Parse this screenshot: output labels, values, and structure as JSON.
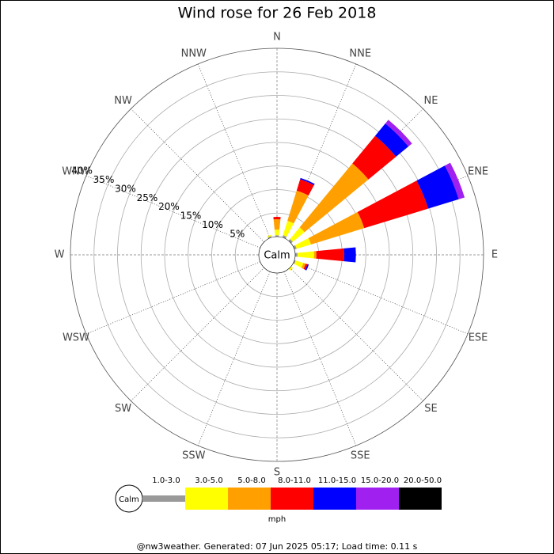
{
  "chart_data": {
    "type": "windrose",
    "title": "Wind rose for 26 Feb 2018",
    "calm_label": "Calm",
    "unit": "mph",
    "footer": "@nw3weather. Generated: 07 Jun 2025 05:17; Load time: 0.11 s",
    "categories": [
      "N",
      "NNE",
      "NE",
      "ENE",
      "E",
      "ESE",
      "SE",
      "SSE",
      "S",
      "SSW",
      "SW",
      "WSW",
      "W",
      "WNW",
      "NW",
      "NNW"
    ],
    "ylim": [
      0,
      40
    ],
    "yticks": [
      {
        "value": 5,
        "label": "5%"
      },
      {
        "value": 10,
        "label": "10%"
      },
      {
        "value": 15,
        "label": "15%"
      },
      {
        "value": 20,
        "label": "20%"
      },
      {
        "value": 25,
        "label": "25%"
      },
      {
        "value": 30,
        "label": "30%"
      },
      {
        "value": 35,
        "label": "35%"
      },
      {
        "value": 40,
        "label": "40%"
      }
    ],
    "series": [
      {
        "name": "1.0-3.0",
        "color": "#999999",
        "values": [
          0.3,
          0.5,
          0.5,
          0.5,
          0.5,
          0.3,
          0,
          0,
          0,
          0,
          0,
          0,
          0,
          0,
          0,
          0.3
        ]
      },
      {
        "name": "3.0-5.0",
        "color": "#ffff00",
        "values": [
          1.2,
          3.2,
          3.2,
          3.2,
          3.5,
          1.7,
          0.5,
          0,
          0,
          0,
          0,
          0,
          0,
          0,
          0,
          0.3
        ]
      },
      {
        "name": "5.0-8.0",
        "color": "#ffa000",
        "values": [
          2.2,
          6.7,
          17.6,
          11.8,
          0.5,
          0.5,
          0,
          0,
          0,
          0,
          0,
          0,
          0,
          0,
          0,
          0
        ]
      },
      {
        "name": "8.0-11.0",
        "color": "#ff0000",
        "values": [
          0.5,
          2.5,
          7.6,
          14.2,
          5.9,
          0.4,
          0,
          0,
          0,
          0,
          0,
          0,
          0,
          0,
          0,
          0
        ]
      },
      {
        "name": "11.0-15.0",
        "color": "#0000ff",
        "values": [
          0,
          0.3,
          3.4,
          6.8,
          2.5,
          0.3,
          0,
          0,
          0,
          0,
          0,
          0,
          0,
          0,
          0,
          0
        ]
      },
      {
        "name": "15.0-20.0",
        "color": "#a020f0",
        "values": [
          0,
          0,
          1.0,
          1.3,
          0,
          0,
          0,
          0,
          0,
          0,
          0,
          0,
          0,
          0,
          0,
          0
        ]
      },
      {
        "name": "20.0-50.0",
        "color": "#000000",
        "values": [
          0,
          0,
          0,
          0,
          0,
          0,
          0,
          0,
          0,
          0,
          0,
          0,
          0,
          0,
          0,
          0
        ]
      }
    ]
  }
}
